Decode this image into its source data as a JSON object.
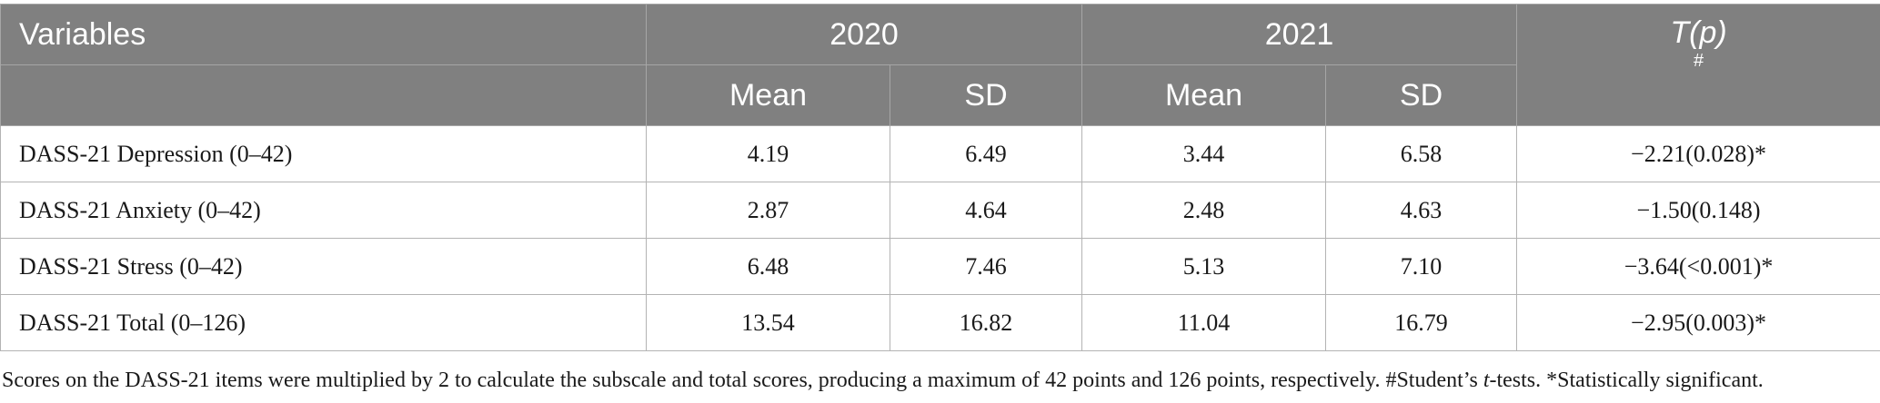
{
  "table": {
    "header": {
      "variables": "Variables",
      "year_2020": "2020",
      "year_2021": "2021",
      "t_label": "T(p)",
      "t_mark": "#",
      "mean_2020": "Mean",
      "sd_2020": "SD",
      "mean_2021": "Mean",
      "sd_2021": "SD"
    },
    "rows": [
      {
        "label": "DASS-21 Depression (0–42)",
        "mean2020": "4.19",
        "sd2020": "6.49",
        "mean2021": "3.44",
        "sd2021": "6.58",
        "tp": "−2.21(0.028)*"
      },
      {
        "label": "DASS-21 Anxiety (0–42)",
        "mean2020": "2.87",
        "sd2020": "4.64",
        "mean2021": "2.48",
        "sd2021": "4.63",
        "tp": "−1.50(0.148)"
      },
      {
        "label": "DASS-21 Stress (0–42)",
        "mean2020": "6.48",
        "sd2020": "7.46",
        "mean2021": "5.13",
        "sd2021": "7.10",
        "tp": "−3.64(<0.001)*"
      },
      {
        "label": "DASS-21 Total (0–126)",
        "mean2020": "13.54",
        "sd2020": "16.82",
        "mean2021": "11.04",
        "sd2021": "16.79",
        "tp": "−2.95(0.003)*"
      }
    ]
  },
  "footnote": {
    "part1": "Scores on the DASS-21 items were multiplied by 2 to calculate the subscale and total scores, producing a maximum of 42 points and 126 points, respectively. #Student’s ",
    "italic": "t",
    "part2": "-tests. *Statistically significant."
  }
}
